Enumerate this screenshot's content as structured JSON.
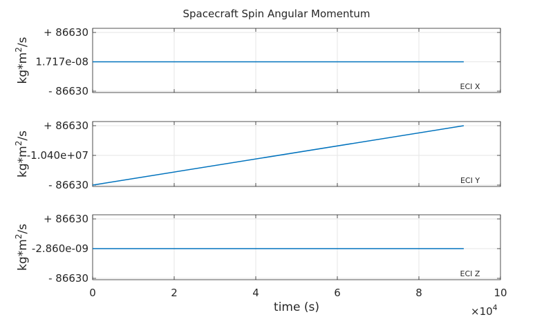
{
  "chart_data": {
    "type": "line",
    "title": "Spacecraft Spin Angular Momentum",
    "xlabel": "time (s)",
    "xlim": [
      0,
      100000
    ],
    "x_ticks": [
      0,
      20000,
      40000,
      60000,
      80000,
      100000
    ],
    "x_tick_labels": [
      "0",
      "2",
      "4",
      "6",
      "8",
      "10"
    ],
    "x_exponent_label": "×10",
    "x_exponent_power": "4",
    "grid": true,
    "panels": [
      {
        "label": "ECI X",
        "ylabel": "kg*m",
        "ylabel_sup": "2",
        "ylabel_tail": "/s",
        "y_tick_labels": [
          "+ 86630",
          "1.717e-08",
          "- 86630"
        ],
        "center": 1.717e-08,
        "series": {
          "x": [
            0,
            91000
          ],
          "y": [
            1.717e-08,
            1.717e-08
          ]
        },
        "color": "#0072BD"
      },
      {
        "label": "ECI Y",
        "ylabel": "kg*m",
        "ylabel_sup": "2",
        "ylabel_tail": "/s",
        "y_tick_labels": [
          "+ 86630",
          "-1.040e+07",
          "- 86630"
        ],
        "center": -10400000,
        "series": {
          "x": [
            0,
            91000
          ],
          "y": [
            -10486630,
            -10313370
          ]
        },
        "color": "#0072BD"
      },
      {
        "label": "ECI Z",
        "ylabel": "kg*m",
        "ylabel_sup": "2",
        "ylabel_tail": "/s",
        "y_tick_labels": [
          "+ 86630",
          "-2.860e-09",
          "- 86630"
        ],
        "center": -2.86e-09,
        "series": {
          "x": [
            0,
            91000
          ],
          "y": [
            -2.86e-09,
            -2.86e-09
          ]
        },
        "color": "#0072BD"
      }
    ]
  }
}
